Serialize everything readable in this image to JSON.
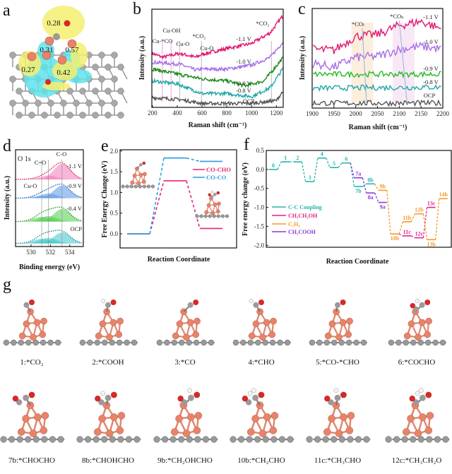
{
  "panel_labels": {
    "a": "a",
    "b": "b",
    "c": "c",
    "d": "d",
    "e": "e",
    "f": "f",
    "g": "g"
  },
  "panel_a": {
    "charges": [
      "0.28",
      "0.31",
      "0.57",
      "0.27",
      "0.42"
    ],
    "colors": {
      "charge_accumulation": "#f3ef6e",
      "charge_depletion": "#5fe3ea",
      "cu": "#e8836a",
      "o": "#d42a2a",
      "c": "#9a9a9a"
    }
  },
  "chart_data": [
    {
      "panel": "b",
      "type": "line",
      "xlabel": "Raman shift (cm⁻¹)",
      "ylabel": "Intensity (a.u.)",
      "xlim": [
        195,
        1255
      ],
      "xticks": [
        200,
        400,
        600,
        800,
        1000,
        1200
      ],
      "ylim": [
        0,
        10
      ],
      "grid": false,
      "series": [
        {
          "name": "-1.1 V",
          "color": "#e2186e",
          "points": [
            [
              200,
              5.5
            ],
            [
              280,
              5.1
            ],
            [
              420,
              5.5
            ],
            [
              550,
              5.1
            ],
            [
              600,
              5.4
            ],
            [
              800,
              6.0
            ],
            [
              1000,
              6.5
            ],
            [
              1150,
              7.6
            ],
            [
              1250,
              9.3
            ]
          ]
        },
        {
          "name": "-1.0 V",
          "color": "#a86ee8",
          "points": [
            [
              200,
              4.6
            ],
            [
              420,
              4.4
            ],
            [
              550,
              3.8
            ],
            [
              600,
              3.9
            ],
            [
              800,
              3.9
            ],
            [
              1000,
              4.3
            ],
            [
              1150,
              5.1
            ],
            [
              1250,
              6.6
            ]
          ]
        },
        {
          "name": "-0.9 V",
          "color": "#1b8a1b",
          "points": [
            [
              200,
              3.9
            ],
            [
              400,
              3.4
            ],
            [
              600,
              2.9
            ],
            [
              800,
              2.7
            ],
            [
              950,
              2.2
            ],
            [
              1100,
              2.7
            ],
            [
              1250,
              5.0
            ]
          ]
        },
        {
          "name": "-0.8 V",
          "color": "#20a8a8",
          "points": [
            [
              200,
              2.7
            ],
            [
              400,
              2.4
            ],
            [
              600,
              1.4
            ],
            [
              800,
              1.4
            ],
            [
              1000,
              1.1
            ],
            [
              1150,
              2.0
            ],
            [
              1250,
              3.9
            ]
          ]
        },
        {
          "name": "OCP",
          "color": "#555555",
          "points": [
            [
              200,
              1.0
            ],
            [
              420,
              0.8
            ],
            [
              600,
              0.4
            ],
            [
              1000,
              0.4
            ],
            [
              1200,
              0.7
            ],
            [
              1250,
              1.6
            ]
          ]
        }
      ],
      "annotations": [
        "Cu-*CO",
        "Cu-OH",
        "Cu-O",
        "*CO₂",
        "Cu-O",
        "*CO₂"
      ],
      "reference_lines": [
        {
          "x": 280,
          "color": "#e9a0e0"
        },
        {
          "x": 350,
          "color": "#e9a0e0"
        },
        {
          "x": 420,
          "color": "#bbbbbb"
        },
        {
          "x": 595,
          "color": "#bbbbbb"
        },
        {
          "x": 1160,
          "color": "#bbbbbb"
        }
      ]
    },
    {
      "panel": "c",
      "type": "line",
      "xlabel": "Raman shift (cm⁻¹)",
      "ylabel": "Intensity (a.u.)",
      "xlim": [
        1900,
        2200
      ],
      "xticks": [
        1900,
        1950,
        2000,
        2050,
        2100,
        2150,
        2200
      ],
      "ylim": [
        0,
        10
      ],
      "grid": false,
      "series": [
        {
          "name": "-1.1 V",
          "color": "#e2186e",
          "points": [
            [
              1900,
              5.9
            ],
            [
              1950,
              5.8
            ],
            [
              2000,
              7.2
            ],
            [
              2050,
              7.4
            ],
            [
              2100,
              8.3
            ],
            [
              2150,
              8.7
            ],
            [
              2200,
              7.9
            ]
          ]
        },
        {
          "name": "-1.0 V",
          "color": "#a86ee8",
          "points": [
            [
              1900,
              4.5
            ],
            [
              1950,
              4.1
            ],
            [
              2000,
              5.1
            ],
            [
              2050,
              5.2
            ],
            [
              2100,
              5.9
            ],
            [
              2150,
              6.2
            ],
            [
              2200,
              5.9
            ]
          ]
        },
        {
          "name": "-0.9 V",
          "color": "#22bb22",
          "points": [
            [
              1900,
              3.4
            ],
            [
              2200,
              3.4
            ]
          ]
        },
        {
          "name": "-0.8 V",
          "color": "#20a8a8",
          "points": [
            [
              1900,
              2.0
            ],
            [
              2200,
              2.1
            ]
          ]
        },
        {
          "name": "OCP",
          "color": "#555555",
          "points": [
            [
              1900,
              0.5
            ],
            [
              2200,
              0.5
            ]
          ]
        }
      ],
      "annotations": [
        {
          "text": "*COₗ",
          "band": [
            1990,
            2040
          ],
          "band_color": "#fbeedd",
          "line": [
            2015,
            2025
          ]
        },
        {
          "text": "*COₕ",
          "band": [
            2085,
            2135
          ],
          "band_color": "#f8e8f6",
          "line": [
            2100,
            2118
          ]
        }
      ]
    },
    {
      "panel": "d",
      "type": "area",
      "title": "O 1s",
      "xlabel": "Binding energy (eV)",
      "ylabel": "Intensity (a.u.)",
      "xlim": [
        528.4,
        535.4
      ],
      "xticks": [
        530,
        532,
        534
      ],
      "ylim": [
        0,
        6.2
      ],
      "peak_labels": [
        "Cu-O",
        "C=O",
        "C-O"
      ],
      "peak_centers": [
        531.1,
        531.8,
        533.2
      ],
      "series": [
        {
          "name": "-1.1 V",
          "offset": 4.3,
          "line_color": "#d01c3c",
          "fill_color": "#f27ab8",
          "heights": [
            0.05,
            0.25,
            1.0
          ]
        },
        {
          "name": "-0.9 V",
          "offset": 3.1,
          "line_color": "#1a5fc0",
          "fill_color": "#5a96e6",
          "heights": [
            0.15,
            0.3,
            0.8
          ]
        },
        {
          "name": "-0.4 V",
          "offset": 1.6,
          "line_color": "#1e9a1e",
          "fill_color": "#4ccd4c",
          "heights": [
            0.3,
            0.35,
            0.8
          ]
        },
        {
          "name": "OCP",
          "offset": 0.2,
          "line_color": "#12888c",
          "fill_color": "#3cc4c8",
          "heights": [
            0.3,
            0.35,
            0.7
          ]
        }
      ]
    },
    {
      "panel": "e",
      "type": "line",
      "xlabel": "Reaction Coordinate",
      "ylabel": "Free Energy Change (eV)",
      "ylim": [
        -0.34,
        2.03
      ],
      "yticks": [
        "0.0",
        "0.5",
        "1.0",
        "1.5",
        "2.0"
      ],
      "legend": "right",
      "series": [
        {
          "name": "CO-CHO",
          "color": "#e8247c",
          "values": [
            0.0,
            1.28,
            0.13
          ]
        },
        {
          "name": "CO-CO",
          "color": "#2a9ee0",
          "values": [
            0.0,
            1.83,
            1.75
          ]
        }
      ]
    },
    {
      "panel": "f",
      "type": "line",
      "xlabel": "Reaction Coordinate",
      "ylabel": "Free energy change (eV)",
      "ylim": [
        -2.05,
        0.5
      ],
      "yticks": [
        "-2.0",
        "-1.5",
        "-1.0",
        "-0.5",
        "0.0",
        "0.5"
      ],
      "legend": "bottom-left",
      "series": [
        {
          "name": "C-C Coupling",
          "color": "#26b3b0",
          "path": [
            "0",
            "1",
            "2",
            "3",
            "4",
            "5",
            "6",
            "7b",
            "8b"
          ]
        },
        {
          "name": "CH₃CH₂OH",
          "color": "#e0248c",
          "path": [
            "10b",
            "11c",
            "12c",
            "13c"
          ]
        },
        {
          "name": "C₂H₄",
          "color": "#f59a2a",
          "path": [
            "8b",
            "9b",
            "10b",
            "11b",
            "12b",
            "13b",
            "14b"
          ]
        },
        {
          "name": "CH₃COOH",
          "color": "#8a3ad8",
          "path": [
            "6",
            "7a",
            "8a",
            "9a"
          ]
        }
      ],
      "states": [
        {
          "label": "0",
          "step": 0,
          "energy": 0.0,
          "series": 0
        },
        {
          "label": "1",
          "step": 1,
          "energy": 0.2,
          "series": 0
        },
        {
          "label": "2",
          "step": 2,
          "energy": 0.2,
          "series": 0
        },
        {
          "label": "3",
          "step": 3,
          "energy": -0.32,
          "series": 0
        },
        {
          "label": "4",
          "step": 4,
          "energy": 0.3,
          "series": 0
        },
        {
          "label": "5",
          "step": 5,
          "energy": 0.05,
          "series": 0
        },
        {
          "label": "6",
          "step": 6,
          "energy": 0.17,
          "series": 0
        },
        {
          "label": "7a",
          "step": 7,
          "energy": -0.22,
          "series": 3
        },
        {
          "label": "7b",
          "step": 7,
          "energy": -0.45,
          "series": 0
        },
        {
          "label": "8a",
          "step": 8,
          "energy": -0.62,
          "series": 3
        },
        {
          "label": "8b",
          "step": 8,
          "energy": -0.38,
          "series": 0
        },
        {
          "label": "9a",
          "step": 9,
          "energy": -0.87,
          "series": 3
        },
        {
          "label": "9b",
          "step": 9,
          "energy": -0.55,
          "series": 2
        },
        {
          "label": "10b",
          "step": 10,
          "energy": -1.7,
          "series": 2
        },
        {
          "label": "11b",
          "step": 11,
          "energy": -1.38,
          "series": 2
        },
        {
          "label": "11c",
          "step": 11,
          "energy": -1.75,
          "series": 1
        },
        {
          "label": "12b",
          "step": 12,
          "energy": -1.17,
          "series": 2
        },
        {
          "label": "12c",
          "step": 12,
          "energy": -1.8,
          "series": 1
        },
        {
          "label": "13b",
          "step": 13,
          "energy": -1.85,
          "series": 2
        },
        {
          "label": "13c",
          "step": 13,
          "energy": -1.0,
          "series": 1
        },
        {
          "label": "14b",
          "step": 14,
          "energy": -0.77,
          "series": 2
        }
      ]
    }
  ],
  "panel_g": {
    "structures": [
      "1:*CO₂",
      "2:*COOH",
      "3:*CO",
      "4:*CHO",
      "5:*CO-*CHO",
      "6:*COCHO",
      "7b:*CHOCHO",
      "8b:*CHOHCHO",
      "9b:*CH₂OHCHO",
      "10b:*CH₂CHO",
      "11c:*CH₃CHO",
      "12c:*CH₃CH₂O"
    ]
  }
}
